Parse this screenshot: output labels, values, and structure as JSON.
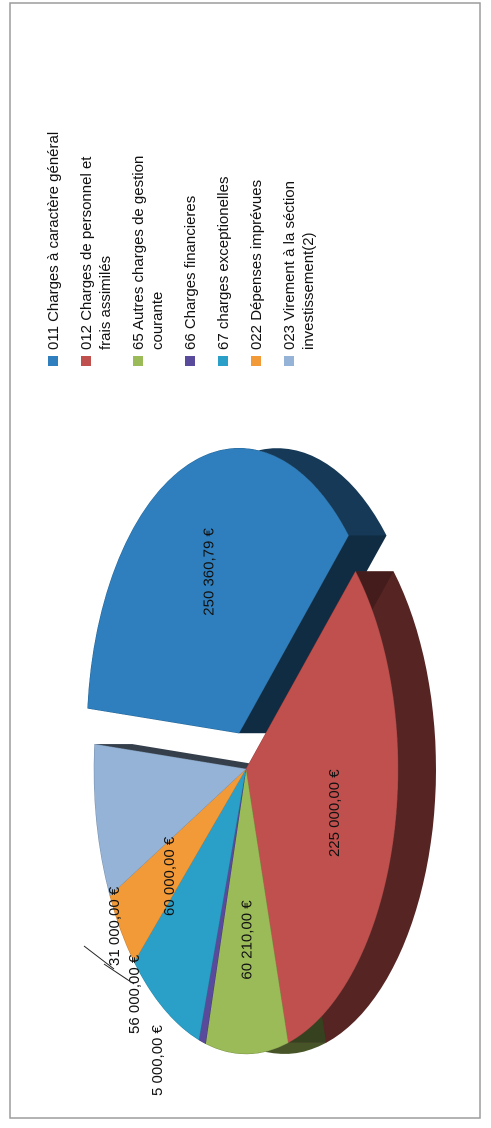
{
  "chart_data": {
    "type": "pie",
    "title": "",
    "rotation": "page rotated 90° counter-clockwise",
    "legend_position": "right",
    "slices": [
      {
        "name": "011 Charges à caractère général",
        "value": 250360.79,
        "label": "250 360,79 €",
        "color": "#2f7fbe",
        "exploded": true
      },
      {
        "name": "012  Charges de personnel et frais assimilés",
        "value": 225000.0,
        "label": "225 000,00 €",
        "color": "#c0504d",
        "exploded": false
      },
      {
        "name": "65 Autres charges de gestion courante",
        "value": 60210.0,
        "label": "60 210,00 €",
        "color": "#9bbb59",
        "exploded": false
      },
      {
        "name": "66  Charges financieres",
        "value": 5000.0,
        "label": "5 000,00 €",
        "color": "#5a4a9c",
        "exploded": false
      },
      {
        "name": "67  charges exceptionelles",
        "value": 56000.0,
        "label": "56 000,00 €",
        "color": "#2aa0c8",
        "exploded": false
      },
      {
        "name": "022    Dépenses imprévues",
        "value": 31000.0,
        "label": "31 000,00 €",
        "color": "#f29a38",
        "exploded": false
      },
      {
        "name": "023 Virement à la séction investissement(2)",
        "value": 60000.0,
        "label": "60 000,00 €",
        "color": "#95b3d7",
        "exploded": false
      }
    ]
  }
}
